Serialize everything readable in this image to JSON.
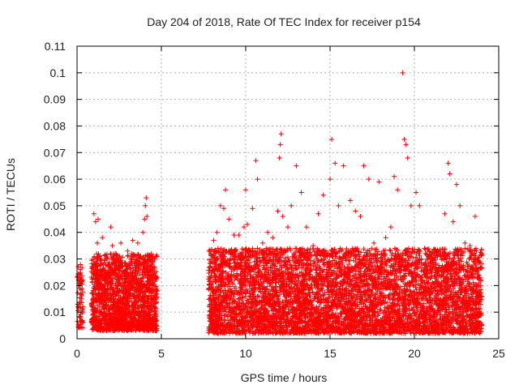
{
  "chart_data": {
    "type": "scatter",
    "title": "Day 204 of 2018, Rate Of TEC Index for receiver p154",
    "xlabel": "GPS time / hours",
    "ylabel": "ROTI / TECUs",
    "xlim": [
      0,
      25
    ],
    "ylim": [
      0,
      0.11
    ],
    "x_ticks": [
      0,
      5,
      10,
      15,
      20,
      25
    ],
    "x_tick_labels": [
      "0",
      "5",
      "10",
      "15",
      "20",
      "25"
    ],
    "y_ticks": [
      0,
      0.01,
      0.02,
      0.03,
      0.04,
      0.05,
      0.06,
      0.07,
      0.08,
      0.09,
      0.1,
      0.11
    ],
    "y_tick_labels": [
      "0",
      "0.01",
      "0.02",
      "0.03",
      "0.04",
      "0.05",
      "0.06",
      "0.07",
      "0.08",
      "0.09",
      "0.1",
      "0.11"
    ],
    "grid": true,
    "marker": "plus",
    "marker_color": "#ff0000",
    "series": [
      {
        "points": [
          [
            0.05,
            0.012
          ],
          [
            0.1,
            0.02
          ],
          [
            0.15,
            0.008
          ],
          [
            0.2,
            0.026
          ],
          [
            0.25,
            0.015
          ],
          [
            0.3,
            0.006
          ],
          [
            1.0,
            0.047
          ],
          [
            1.1,
            0.044
          ],
          [
            1.2,
            0.036
          ],
          [
            1.25,
            0.045
          ],
          [
            1.5,
            0.038
          ],
          [
            1.7,
            0.03
          ],
          [
            2.0,
            0.042
          ],
          [
            2.1,
            0.035
          ],
          [
            2.3,
            0.032
          ],
          [
            2.6,
            0.036
          ],
          [
            3.0,
            0.033
          ],
          [
            3.3,
            0.037
          ],
          [
            3.6,
            0.036
          ],
          [
            3.9,
            0.04
          ],
          [
            4.0,
            0.045
          ],
          [
            4.05,
            0.05
          ],
          [
            4.1,
            0.053
          ],
          [
            4.15,
            0.046
          ],
          [
            4.3,
            0.03
          ],
          [
            4.6,
            0.025
          ],
          [
            8.1,
            0.037
          ],
          [
            8.3,
            0.04
          ],
          [
            8.5,
            0.05
          ],
          [
            8.7,
            0.049
          ],
          [
            8.8,
            0.056
          ],
          [
            9.0,
            0.045
          ],
          [
            9.3,
            0.039
          ],
          [
            9.6,
            0.039
          ],
          [
            9.9,
            0.042
          ],
          [
            10.0,
            0.056
          ],
          [
            10.1,
            0.043
          ],
          [
            10.4,
            0.049
          ],
          [
            10.6,
            0.067
          ],
          [
            10.7,
            0.06
          ],
          [
            11.0,
            0.036
          ],
          [
            11.3,
            0.04
          ],
          [
            11.6,
            0.038
          ],
          [
            11.9,
            0.048
          ],
          [
            12.0,
            0.068
          ],
          [
            12.05,
            0.073
          ],
          [
            12.1,
            0.077
          ],
          [
            12.2,
            0.046
          ],
          [
            12.5,
            0.042
          ],
          [
            12.7,
            0.05
          ],
          [
            13.0,
            0.065
          ],
          [
            13.3,
            0.055
          ],
          [
            13.6,
            0.042
          ],
          [
            14.0,
            0.035
          ],
          [
            14.3,
            0.047
          ],
          [
            14.6,
            0.054
          ],
          [
            15.0,
            0.06
          ],
          [
            15.1,
            0.075
          ],
          [
            15.3,
            0.066
          ],
          [
            15.5,
            0.05
          ],
          [
            15.8,
            0.065
          ],
          [
            16.2,
            0.052
          ],
          [
            16.5,
            0.048
          ],
          [
            16.8,
            0.046
          ],
          [
            17.0,
            0.065
          ],
          [
            17.3,
            0.06
          ],
          [
            17.6,
            0.036
          ],
          [
            17.9,
            0.059
          ],
          [
            18.3,
            0.038
          ],
          [
            18.6,
            0.042
          ],
          [
            18.8,
            0.061
          ],
          [
            19.0,
            0.056
          ],
          [
            19.3,
            0.1
          ],
          [
            19.4,
            0.075
          ],
          [
            19.5,
            0.073
          ],
          [
            19.6,
            0.068
          ],
          [
            19.8,
            0.05
          ],
          [
            20.1,
            0.055
          ],
          [
            20.3,
            0.05
          ],
          [
            20.6,
            0.034
          ],
          [
            21.0,
            0.025
          ],
          [
            21.4,
            0.033
          ],
          [
            21.8,
            0.047
          ],
          [
            22.0,
            0.066
          ],
          [
            22.1,
            0.062
          ],
          [
            22.3,
            0.044
          ],
          [
            22.5,
            0.058
          ],
          [
            22.7,
            0.05
          ],
          [
            23.0,
            0.036
          ],
          [
            23.3,
            0.035
          ],
          [
            23.6,
            0.046
          ],
          [
            23.9,
            0.027
          ]
        ]
      }
    ],
    "bands": [
      {
        "x_range": [
          0.0,
          0.35
        ],
        "y_range": [
          0.004,
          0.028
        ],
        "density": 70
      },
      {
        "x_range": [
          0.85,
          4.75
        ],
        "y_range": [
          0.003,
          0.032
        ],
        "density": 1800
      },
      {
        "x_range": [
          7.8,
          24.0
        ],
        "y_range": [
          0.002,
          0.034
        ],
        "density": 6200
      }
    ]
  }
}
